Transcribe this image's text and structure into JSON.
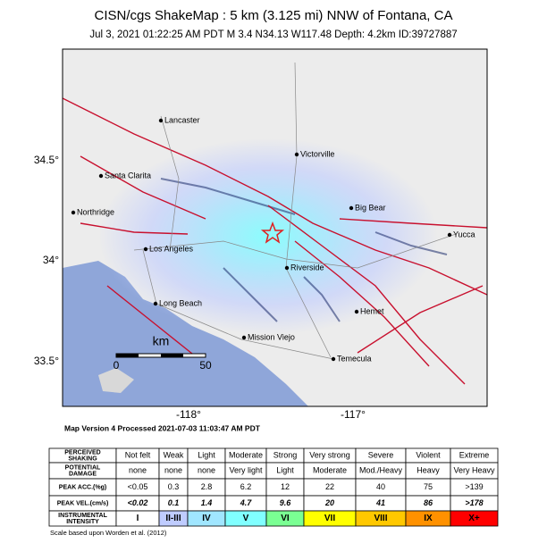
{
  "header": {
    "title": "CISN/cgs ShakeMap : 5 km (3.125 mi) NNW of Fontana, CA",
    "subtitle": "Jul  3, 2021 01:22:25 AM PDT   M 3.4   N34.13 W117.48   Depth: 4.2km   ID:39727887"
  },
  "map": {
    "cities": [
      "Lancaster",
      "Victorville",
      "Santa Clarita",
      "Northridge",
      "Big Bear",
      "Yucca",
      "Los Angeles",
      "Riverside",
      "Long Beach",
      "Hemet",
      "Mission Viejo",
      "Temecula"
    ],
    "lat_labels": [
      "34.5°",
      "34°",
      "33.5°"
    ],
    "lon_labels": [
      "-118°",
      "-117°"
    ],
    "scale": {
      "unit": "km",
      "start": "0",
      "end": "50"
    }
  },
  "version": "Map Version 4 Processed 2021-07-03 11:03:47 AM PDT",
  "table": {
    "rows": [
      {
        "label": "PERCEIVED SHAKING",
        "cells": [
          "Not felt",
          "Weak",
          "Light",
          "Moderate",
          "Strong",
          "Very strong",
          "Severe",
          "Violent",
          "Extreme"
        ]
      },
      {
        "label": "POTENTIAL DAMAGE",
        "cells": [
          "none",
          "none",
          "none",
          "Very light",
          "Light",
          "Moderate",
          "Mod./Heavy",
          "Heavy",
          "Very Heavy"
        ]
      },
      {
        "label": "PEAK ACC.(%g)",
        "cells": [
          "<0.05",
          "0.3",
          "2.8",
          "6.2",
          "12",
          "22",
          "40",
          "75",
          ">139"
        ]
      },
      {
        "label": "PEAK VEL.(cm/s)",
        "cells": [
          "<0.02",
          "0.1",
          "1.4",
          "4.7",
          "9.6",
          "20",
          "41",
          "86",
          ">178"
        ]
      },
      {
        "label": "INSTRUMENTAL INTENSITY",
        "cells": [
          "I",
          "II-III",
          "IV",
          "V",
          "VI",
          "VII",
          "VIII",
          "IX",
          "X+"
        ]
      }
    ]
  },
  "footnote": "Scale based upon Worden et al. (2012)"
}
